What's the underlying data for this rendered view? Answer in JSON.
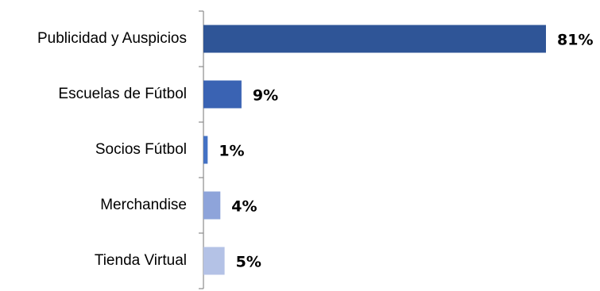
{
  "chart_data": {
    "type": "bar",
    "orientation": "horizontal",
    "categories": [
      "Publicidad y Auspicios",
      "Escuelas de Fútbol",
      "Socios Fútbol",
      "Merchandise",
      "Tienda Virtual"
    ],
    "values": [
      81,
      9,
      1,
      4,
      5
    ],
    "value_labels": [
      "81%",
      "9%",
      "1%",
      "4%",
      "5%"
    ],
    "colors": [
      "#2F5597",
      "#3A63B3",
      "#4472C4",
      "#8EA4DA",
      "#B4C2E6"
    ],
    "unit": "%",
    "xlim": [
      0,
      81
    ],
    "grid": false,
    "legend": "none"
  }
}
